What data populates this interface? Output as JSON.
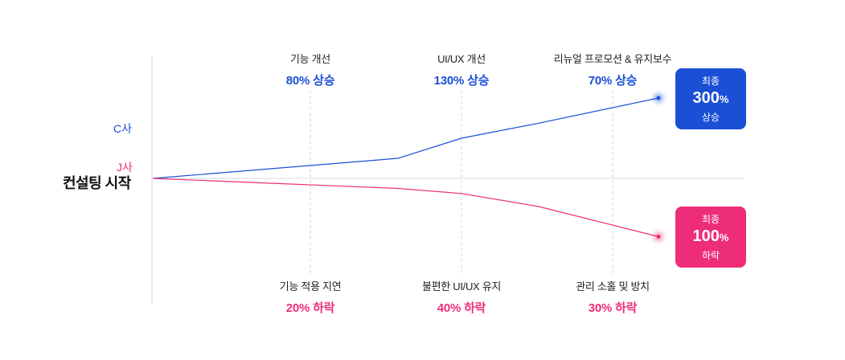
{
  "chart_data": {
    "type": "line",
    "start_label": "컨설팅 시작",
    "series": [
      {
        "name": "C사",
        "direction": "up",
        "color": "#1a4fd6",
        "values": [
          0,
          20,
          40,
          55,
          80
        ],
        "milestones": [
          {
            "title": "기능 개선",
            "value": "80% 상승"
          },
          {
            "title": "UI/UX 개선",
            "value": "130% 상승"
          },
          {
            "title": "리뉴얼 프로모션 & 유지보수",
            "value": "70% 상승"
          }
        ],
        "final": {
          "top": "최종",
          "number": "300",
          "unit": "%",
          "bottom": "상승"
        }
      },
      {
        "name": "J사",
        "direction": "down",
        "color": "#ee2d7a",
        "values": [
          0,
          -10,
          -15,
          -28,
          -58
        ],
        "milestones": [
          {
            "title": "기능 적용 지연",
            "value": "20% 하락"
          },
          {
            "title": "불편한 UI/UX 유지",
            "value": "40% 하락"
          },
          {
            "title": "관리 소홀 및 방치",
            "value": "30% 하락"
          }
        ],
        "final": {
          "top": "최종",
          "number": "100",
          "unit": "%",
          "bottom": "하락"
        }
      }
    ]
  }
}
